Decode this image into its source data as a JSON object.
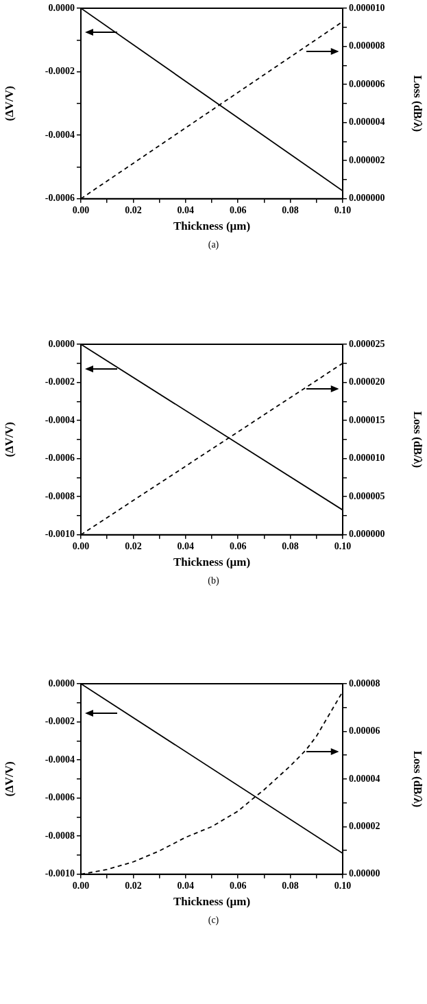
{
  "chart_data": [
    {
      "type": "line",
      "xlabel": "Thickness (μm)",
      "ylabel": "(ΔV/V)",
      "y2label": "Loss (dB/λ)",
      "annotations": [
        "(a)"
      ],
      "marker": "none",
      "legend": false,
      "grid": false,
      "xlim": [
        0,
        0.1
      ],
      "xticks": [
        {
          "value": 0,
          "label": "0.00"
        },
        {
          "value": 0.01,
          "label": null
        },
        {
          "value": 0.02,
          "label": "0.02"
        },
        {
          "value": 0.03,
          "label": null
        },
        {
          "value": 0.04,
          "label": "0.04"
        },
        {
          "value": 0.05,
          "label": null
        },
        {
          "value": 0.06,
          "label": "0.06"
        },
        {
          "value": 0.07,
          "label": null
        },
        {
          "value": 0.08,
          "label": "0.08"
        },
        {
          "value": 0.09,
          "label": null
        },
        {
          "value": 0.1,
          "label": "0.10"
        }
      ],
      "ylim": [
        -0.0006,
        0
      ],
      "yticks": [
        {
          "value": -0.0006,
          "label": "-0.0006"
        },
        {
          "value": -0.0005,
          "label": null
        },
        {
          "value": -0.0004,
          "label": "-0.0004"
        },
        {
          "value": -0.0003,
          "label": null
        },
        {
          "value": -0.0002,
          "label": "-0.0002"
        },
        {
          "value": -0.0001,
          "label": null
        },
        {
          "value": 0,
          "label": "0.0000"
        }
      ],
      "y2lim": [
        0,
        1e-05
      ],
      "y2ticks": [
        {
          "value": 0,
          "label": "0.000000"
        },
        {
          "value": 1e-06,
          "label": null
        },
        {
          "value": 2e-06,
          "label": "0.000002"
        },
        {
          "value": 3e-06,
          "label": null
        },
        {
          "value": 4e-06,
          "label": "0.000004"
        },
        {
          "value": 5e-06,
          "label": null
        },
        {
          "value": 6e-06,
          "label": "0.000006"
        },
        {
          "value": 7e-06,
          "label": null
        },
        {
          "value": 8e-06,
          "label": "0.000008"
        },
        {
          "value": 9e-06,
          "label": null
        },
        {
          "value": 1e-05,
          "label": "0.000010"
        }
      ],
      "series": [
        {
          "color": "#000000",
          "line_style": "solid",
          "x": [
            0,
            0.1
          ],
          "values": [
            0,
            -0.000575
          ]
        },
        {
          "color": "#000000",
          "line_style": "dashed",
          "axis": "y2",
          "x": [
            0,
            0.1
          ],
          "values": [
            0,
            9.3e-06
          ]
        }
      ]
    },
    {
      "type": "line",
      "xlabel": "Thickness (μm)",
      "ylabel": "(ΔV/V)",
      "y2label": "Loss (dB/λ)",
      "annotations": [
        "(b)"
      ],
      "marker": "none",
      "legend": false,
      "grid": false,
      "xlim": [
        0,
        0.1
      ],
      "xticks": [
        {
          "value": 0,
          "label": "0.00"
        },
        {
          "value": 0.01,
          "label": null
        },
        {
          "value": 0.02,
          "label": "0.02"
        },
        {
          "value": 0.03,
          "label": null
        },
        {
          "value": 0.04,
          "label": "0.04"
        },
        {
          "value": 0.05,
          "label": null
        },
        {
          "value": 0.06,
          "label": "0.06"
        },
        {
          "value": 0.07,
          "label": null
        },
        {
          "value": 0.08,
          "label": "0.08"
        },
        {
          "value": 0.09,
          "label": null
        },
        {
          "value": 0.1,
          "label": "0.10"
        }
      ],
      "ylim": [
        -0.001,
        0
      ],
      "yticks": [
        {
          "value": -0.001,
          "label": "-0.0010"
        },
        {
          "value": -0.0009,
          "label": null
        },
        {
          "value": -0.0008,
          "label": "-0.0008"
        },
        {
          "value": -0.0007,
          "label": null
        },
        {
          "value": -0.0006,
          "label": "-0.0006"
        },
        {
          "value": -0.0005,
          "label": null
        },
        {
          "value": -0.0004,
          "label": "-0.0004"
        },
        {
          "value": -0.0003,
          "label": null
        },
        {
          "value": -0.0002,
          "label": "-0.0002"
        },
        {
          "value": -0.0001,
          "label": null
        },
        {
          "value": 0,
          "label": "0.0000"
        }
      ],
      "y2lim": [
        0,
        2.5e-05
      ],
      "y2ticks": [
        {
          "value": 0,
          "label": "0.000000"
        },
        {
          "value": 2.5e-06,
          "label": null
        },
        {
          "value": 5e-06,
          "label": "0.000005"
        },
        {
          "value": 7.5e-06,
          "label": null
        },
        {
          "value": 1e-05,
          "label": "0.000010"
        },
        {
          "value": 1.25e-05,
          "label": null
        },
        {
          "value": 1.5e-05,
          "label": "0.000015"
        },
        {
          "value": 1.75e-05,
          "label": null
        },
        {
          "value": 2e-05,
          "label": "0.000020"
        },
        {
          "value": 2.25e-05,
          "label": null
        },
        {
          "value": 2.5e-05,
          "label": "0.000025"
        }
      ],
      "series": [
        {
          "color": "#000000",
          "line_style": "solid",
          "x": [
            0,
            0.1
          ],
          "values": [
            0,
            -0.00087
          ]
        },
        {
          "color": "#000000",
          "line_style": "dashed",
          "axis": "y2",
          "x": [
            0,
            0.1
          ],
          "values": [
            0,
            2.25e-05
          ]
        }
      ]
    },
    {
      "type": "line",
      "xlabel": "Thickness (μm)",
      "ylabel": "(ΔV/V)",
      "y2label": "Loss (dB/λ)",
      "annotations": [
        "(c)"
      ],
      "marker": "none",
      "legend": false,
      "grid": false,
      "xlim": [
        0,
        0.1
      ],
      "xticks": [
        {
          "value": 0,
          "label": "0.00"
        },
        {
          "value": 0.01,
          "label": null
        },
        {
          "value": 0.02,
          "label": "0.02"
        },
        {
          "value": 0.03,
          "label": null
        },
        {
          "value": 0.04,
          "label": "0.04"
        },
        {
          "value": 0.05,
          "label": null
        },
        {
          "value": 0.06,
          "label": "0.06"
        },
        {
          "value": 0.07,
          "label": null
        },
        {
          "value": 0.08,
          "label": "0.08"
        },
        {
          "value": 0.09,
          "label": null
        },
        {
          "value": 0.1,
          "label": "0.10"
        }
      ],
      "ylim": [
        -0.001,
        0
      ],
      "yticks": [
        {
          "value": -0.001,
          "label": "-0.0010"
        },
        {
          "value": -0.0009,
          "label": null
        },
        {
          "value": -0.0008,
          "label": "-0.0008"
        },
        {
          "value": -0.0007,
          "label": null
        },
        {
          "value": -0.0006,
          "label": "-0.0006"
        },
        {
          "value": -0.0005,
          "label": null
        },
        {
          "value": -0.0004,
          "label": "-0.0004"
        },
        {
          "value": -0.0003,
          "label": null
        },
        {
          "value": -0.0002,
          "label": "-0.0002"
        },
        {
          "value": -0.0001,
          "label": null
        },
        {
          "value": 0,
          "label": "0.0000"
        }
      ],
      "y2lim": [
        0,
        8e-05
      ],
      "y2ticks": [
        {
          "value": 0,
          "label": "0.00000"
        },
        {
          "value": 1e-05,
          "label": null
        },
        {
          "value": 2e-05,
          "label": "0.00002"
        },
        {
          "value": 3e-05,
          "label": null
        },
        {
          "value": 4e-05,
          "label": "0.00004"
        },
        {
          "value": 5e-05,
          "label": null
        },
        {
          "value": 6e-05,
          "label": "0.00006"
        },
        {
          "value": 7e-05,
          "label": null
        },
        {
          "value": 8e-05,
          "label": "0.00008"
        }
      ],
      "series": [
        {
          "color": "#000000",
          "line_style": "solid",
          "x": [
            0,
            0.1
          ],
          "values": [
            0,
            -0.00089
          ]
        },
        {
          "color": "#000000",
          "line_style": "dashed",
          "axis": "y2",
          "x": [
            0,
            0.01,
            0.02,
            0.03,
            0.04,
            0.05,
            0.06,
            0.066,
            0.07,
            0.08,
            0.086,
            0.09,
            0.1
          ],
          "values": [
            0,
            2e-06,
            5.2e-06,
            9.8e-06,
            1.55e-05,
            2e-05,
            2.65e-05,
            3.2e-05,
            3.55e-05,
            4.55e-05,
            5.22e-05,
            5.8e-05,
            7.67e-05
          ]
        }
      ]
    }
  ]
}
